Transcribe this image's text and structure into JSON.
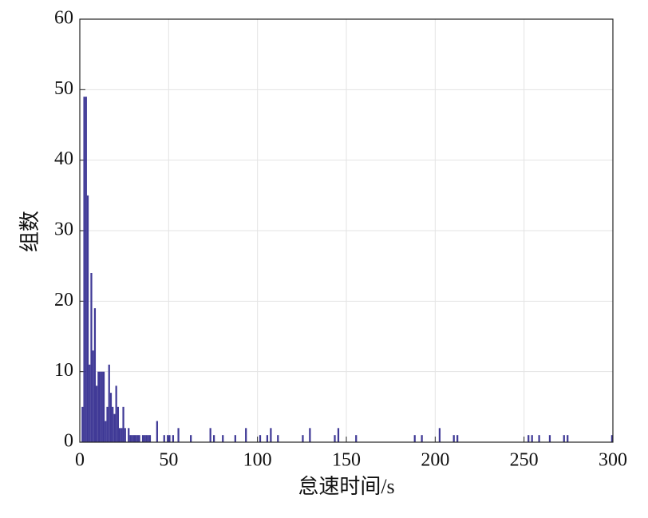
{
  "chart_data": {
    "type": "bar",
    "xlabel": "怠速时间/s",
    "ylabel": "组数",
    "x": [
      1,
      2,
      3,
      4,
      5,
      6,
      7,
      8,
      9,
      10,
      11,
      12,
      13,
      14,
      15,
      16,
      17,
      18,
      19,
      20,
      21,
      22,
      23,
      24,
      25,
      27,
      28,
      29,
      30,
      31,
      32,
      33,
      35,
      36,
      37,
      38,
      39,
      43,
      47,
      49,
      50,
      52,
      55,
      62,
      73,
      75,
      80,
      87,
      93,
      101,
      105,
      107,
      111,
      125,
      129,
      143,
      145,
      155,
      188,
      192,
      202,
      210,
      212,
      252,
      254,
      258,
      264,
      272,
      274,
      299
    ],
    "values": [
      5,
      49,
      49,
      35,
      11,
      24,
      13,
      19,
      8,
      10,
      10,
      10,
      10,
      3,
      5,
      11,
      7,
      5,
      4,
      8,
      5,
      2,
      2,
      5,
      2,
      2,
      1,
      1,
      1,
      1,
      1,
      1,
      1,
      1,
      1,
      1,
      1,
      3,
      1,
      1,
      1,
      1,
      2,
      1,
      2,
      1,
      1,
      1,
      2,
      1,
      1,
      2,
      1,
      1,
      2,
      1,
      2,
      1,
      1,
      1,
      2,
      1,
      1,
      1,
      1,
      1,
      1,
      1,
      1,
      1
    ],
    "color": "#3f3996",
    "xlim": [
      0,
      300
    ],
    "xticks": [
      0,
      50,
      100,
      150,
      200,
      250,
      300
    ],
    "ylim": [
      0,
      60
    ],
    "yticks": [
      0,
      10,
      20,
      30,
      40,
      50,
      60
    ],
    "grid": true
  }
}
